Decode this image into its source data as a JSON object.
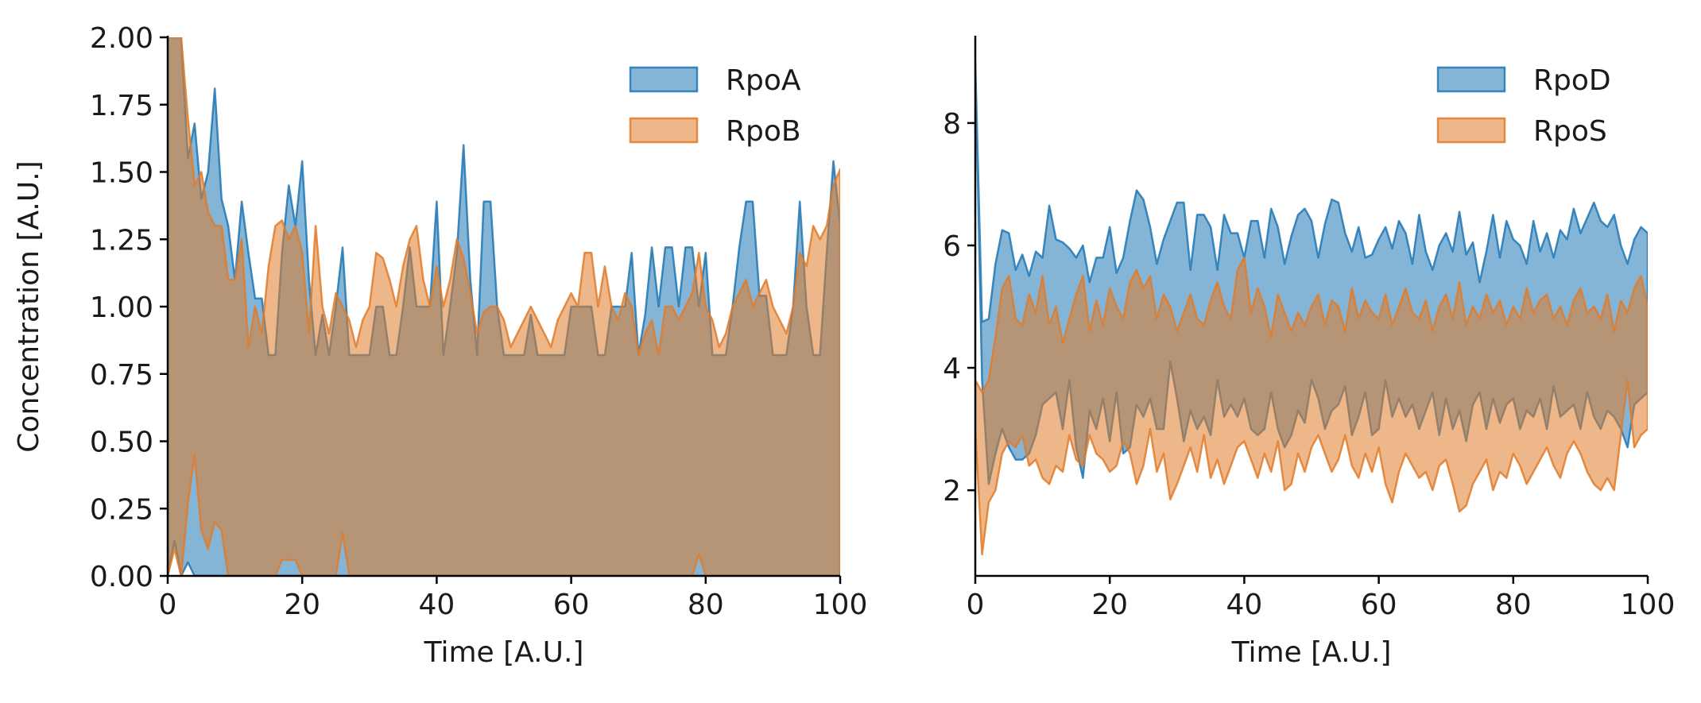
{
  "colors": {
    "series_a": "#1f77b4",
    "series_b": "#e07b29"
  },
  "chart_data": [
    {
      "type": "area",
      "title": "",
      "xlabel": "Time [A.U.]",
      "ylabel": "Concentration [A.U.]",
      "xlim": [
        0,
        100
      ],
      "ylim": [
        0,
        2.0
      ],
      "xticks": [
        "0",
        "20",
        "40",
        "60",
        "80",
        "100"
      ],
      "yticks": [
        "0.00",
        "0.25",
        "0.50",
        "0.75",
        "1.00",
        "1.25",
        "1.50",
        "1.75",
        "2.00"
      ],
      "grid": false,
      "legend_position": "top-right",
      "x": [
        0,
        1,
        2,
        3,
        4,
        5,
        6,
        7,
        8,
        9,
        10,
        11,
        12,
        13,
        14,
        15,
        16,
        17,
        18,
        19,
        20,
        21,
        22,
        23,
        24,
        25,
        26,
        27,
        28,
        29,
        30,
        31,
        32,
        33,
        34,
        35,
        36,
        37,
        38,
        39,
        40,
        41,
        42,
        43,
        44,
        45,
        46,
        47,
        48,
        49,
        50,
        51,
        52,
        53,
        54,
        55,
        56,
        57,
        58,
        59,
        60,
        61,
        62,
        63,
        64,
        65,
        66,
        67,
        68,
        69,
        70,
        71,
        72,
        73,
        74,
        75,
        76,
        77,
        78,
        79,
        80,
        81,
        82,
        83,
        84,
        85,
        86,
        87,
        88,
        89,
        90,
        91,
        92,
        93,
        94,
        95,
        96,
        97,
        98,
        99,
        100
      ],
      "series": [
        {
          "name": "RpoA",
          "upper": [
            2.0,
            2.0,
            2.0,
            1.55,
            1.68,
            1.4,
            1.5,
            1.81,
            1.4,
            1.3,
            1.1,
            1.39,
            1.2,
            1.03,
            1.03,
            0.82,
            0.82,
            1.2,
            1.45,
            1.3,
            1.54,
            1.1,
            0.82,
            0.97,
            0.82,
            1.0,
            1.22,
            0.82,
            0.82,
            0.82,
            0.82,
            1.0,
            1.0,
            0.82,
            0.82,
            1.0,
            1.22,
            1.0,
            1.0,
            1.0,
            1.39,
            0.82,
            1.0,
            1.2,
            1.6,
            1.1,
            0.82,
            1.39,
            1.39,
            1.0,
            0.82,
            0.82,
            0.82,
            0.82,
            0.97,
            0.82,
            0.82,
            0.82,
            0.82,
            0.82,
            1.0,
            1.0,
            1.0,
            1.0,
            0.82,
            0.82,
            1.0,
            1.0,
            1.0,
            1.2,
            0.82,
            0.97,
            1.22,
            1.0,
            1.22,
            1.22,
            1.0,
            1.22,
            1.22,
            1.0,
            1.2,
            0.82,
            0.82,
            0.82,
            1.0,
            1.22,
            1.39,
            1.39,
            1.04,
            1.04,
            0.82,
            0.82,
            0.82,
            1.0,
            1.39,
            1.0,
            0.82,
            0.82,
            1.2,
            1.54,
            1.3
          ],
          "lower": [
            0.0,
            0.13,
            0.0,
            0.05,
            0.0,
            0.0,
            0.0,
            0.0,
            0.0,
            0.0,
            0.0,
            0.0,
            0.0,
            0.0,
            0.0,
            0.0,
            0.0,
            0.0,
            0.0,
            0.0,
            0.0,
            0.0,
            0.0,
            0.0,
            0.0,
            0.0,
            0.0,
            0.0,
            0.0,
            0.0,
            0.0,
            0.0,
            0.0,
            0.0,
            0.0,
            0.0,
            0.0,
            0.0,
            0.0,
            0.0,
            0.0,
            0.0,
            0.0,
            0.0,
            0.0,
            0.0,
            0.0,
            0.0,
            0.0,
            0.0,
            0.0,
            0.0,
            0.0,
            0.0,
            0.0,
            0.0,
            0.0,
            0.0,
            0.0,
            0.0,
            0.0,
            0.0,
            0.0,
            0.0,
            0.0,
            0.0,
            0.0,
            0.0,
            0.0,
            0.0,
            0.0,
            0.0,
            0.0,
            0.0,
            0.0,
            0.0,
            0.0,
            0.0,
            0.0,
            0.0,
            0.0,
            0.0,
            0.0,
            0.0,
            0.0,
            0.0,
            0.0,
            0.0,
            0.0,
            0.0,
            0.0,
            0.0,
            0.0,
            0.0,
            0.0,
            0.0,
            0.0,
            0.0,
            0.0,
            0.0,
            0.0
          ]
        },
        {
          "name": "RpoB",
          "upper": [
            2.0,
            2.0,
            2.0,
            1.7,
            1.45,
            1.5,
            1.35,
            1.3,
            1.3,
            1.1,
            1.1,
            1.25,
            0.85,
            1.0,
            0.9,
            1.15,
            1.3,
            1.32,
            1.25,
            1.3,
            1.2,
            0.9,
            1.3,
            1.0,
            0.9,
            1.05,
            1.0,
            0.95,
            0.85,
            0.95,
            1.0,
            1.2,
            1.18,
            1.1,
            1.0,
            1.15,
            1.25,
            1.3,
            1.1,
            1.0,
            1.15,
            1.0,
            1.1,
            1.25,
            1.18,
            1.05,
            0.9,
            0.98,
            1.0,
            1.0,
            0.95,
            0.85,
            0.9,
            0.95,
            1.0,
            0.95,
            0.9,
            0.85,
            0.95,
            1.0,
            1.05,
            1.0,
            1.2,
            1.2,
            1.0,
            1.15,
            1.0,
            0.95,
            1.05,
            1.0,
            0.82,
            0.9,
            0.95,
            0.82,
            1.0,
            1.0,
            0.95,
            1.0,
            1.05,
            1.2,
            1.0,
            0.95,
            0.85,
            0.9,
            1.0,
            1.05,
            1.1,
            1.0,
            1.05,
            1.1,
            1.0,
            0.95,
            0.9,
            1.0,
            1.2,
            1.15,
            1.3,
            1.25,
            1.3,
            1.45,
            1.51
          ],
          "lower": [
            0.0,
            0.1,
            0.0,
            0.27,
            0.45,
            0.17,
            0.1,
            0.2,
            0.17,
            0.0,
            0.0,
            0.0,
            0.0,
            0.0,
            0.0,
            0.0,
            0.0,
            0.06,
            0.06,
            0.06,
            0.0,
            0.0,
            0.0,
            0.0,
            0.0,
            0.0,
            0.16,
            0.0,
            0.0,
            0.0,
            0.0,
            0.0,
            0.0,
            0.0,
            0.0,
            0.0,
            0.0,
            0.0,
            0.0,
            0.0,
            0.0,
            0.0,
            0.0,
            0.0,
            0.0,
            0.0,
            0.0,
            0.0,
            0.0,
            0.0,
            0.0,
            0.0,
            0.0,
            0.0,
            0.0,
            0.0,
            0.0,
            0.0,
            0.0,
            0.0,
            0.0,
            0.0,
            0.0,
            0.0,
            0.0,
            0.0,
            0.0,
            0.0,
            0.0,
            0.0,
            0.0,
            0.0,
            0.0,
            0.0,
            0.0,
            0.0,
            0.0,
            0.0,
            0.0,
            0.08,
            0.0,
            0.0,
            0.0,
            0.0,
            0.0,
            0.0,
            0.0,
            0.0,
            0.0,
            0.0,
            0.0,
            0.0,
            0.0,
            0.0,
            0.0,
            0.0,
            0.0,
            0.0,
            0.0,
            0.0,
            0.0
          ]
        }
      ]
    },
    {
      "type": "area",
      "title": "",
      "xlabel": "Time [A.U.]",
      "ylabel": "",
      "xlim": [
        0,
        100
      ],
      "ylim": [
        0.6,
        9.4
      ],
      "xticks": [
        "0",
        "20",
        "40",
        "60",
        "80",
        "100"
      ],
      "yticks": [
        "2",
        "4",
        "6",
        "8"
      ],
      "grid": false,
      "legend_position": "top-right",
      "x": [
        0,
        1,
        2,
        3,
        4,
        5,
        6,
        7,
        8,
        9,
        10,
        11,
        12,
        13,
        14,
        15,
        16,
        17,
        18,
        19,
        20,
        21,
        22,
        23,
        24,
        25,
        26,
        27,
        28,
        29,
        30,
        31,
        32,
        33,
        34,
        35,
        36,
        37,
        38,
        39,
        40,
        41,
        42,
        43,
        44,
        45,
        46,
        47,
        48,
        49,
        50,
        51,
        52,
        53,
        54,
        55,
        56,
        57,
        58,
        59,
        60,
        61,
        62,
        63,
        64,
        65,
        66,
        67,
        68,
        69,
        70,
        71,
        72,
        73,
        74,
        75,
        76,
        77,
        78,
        79,
        80,
        81,
        82,
        83,
        84,
        85,
        86,
        87,
        88,
        89,
        90,
        91,
        92,
        93,
        94,
        95,
        96,
        97,
        98,
        99,
        100
      ],
      "series": [
        {
          "name": "RpoD",
          "upper": [
            9.0,
            4.75,
            4.8,
            5.7,
            6.25,
            6.2,
            5.6,
            5.85,
            5.5,
            5.9,
            5.8,
            6.65,
            6.1,
            6.05,
            5.95,
            5.8,
            6.0,
            5.4,
            5.8,
            5.8,
            6.3,
            5.55,
            5.8,
            6.4,
            6.9,
            6.75,
            6.3,
            5.7,
            6.1,
            6.4,
            6.7,
            6.7,
            5.6,
            6.5,
            6.5,
            6.3,
            5.6,
            6.5,
            6.2,
            6.2,
            5.8,
            6.4,
            6.4,
            5.8,
            6.6,
            6.3,
            5.7,
            6.15,
            6.5,
            6.6,
            6.4,
            5.8,
            6.35,
            6.75,
            6.7,
            6.2,
            5.9,
            6.3,
            5.8,
            5.85,
            6.1,
            6.3,
            5.95,
            6.4,
            6.2,
            5.7,
            6.5,
            5.9,
            5.6,
            6.0,
            6.2,
            5.9,
            6.55,
            5.85,
            6.05,
            5.4,
            5.9,
            6.5,
            5.8,
            6.4,
            6.1,
            6.0,
            5.7,
            6.4,
            5.9,
            6.2,
            5.8,
            6.25,
            6.1,
            6.6,
            6.2,
            6.45,
            6.7,
            6.4,
            6.3,
            6.5,
            6.0,
            5.7,
            6.1,
            6.3,
            6.2
          ],
          "lower": [
            9.0,
            3.8,
            2.1,
            2.6,
            3.0,
            2.7,
            2.5,
            2.5,
            2.6,
            2.9,
            3.4,
            3.5,
            3.6,
            3.0,
            3.8,
            2.7,
            2.2,
            3.3,
            3.0,
            3.5,
            2.8,
            3.6,
            2.6,
            2.7,
            3.4,
            3.2,
            3.5,
            3.0,
            3.0,
            4.1,
            3.5,
            2.8,
            3.3,
            3.0,
            3.2,
            2.9,
            3.8,
            3.2,
            3.4,
            3.2,
            3.5,
            3.0,
            2.9,
            3.0,
            3.6,
            3.0,
            2.7,
            2.9,
            3.3,
            3.1,
            3.8,
            3.5,
            3.0,
            3.3,
            3.4,
            3.7,
            2.9,
            3.2,
            3.6,
            2.9,
            3.0,
            3.8,
            3.2,
            3.5,
            3.2,
            3.4,
            3.0,
            3.3,
            3.6,
            2.9,
            3.5,
            3.0,
            3.3,
            2.8,
            3.4,
            3.6,
            3.0,
            3.5,
            3.1,
            3.4,
            3.5,
            3.0,
            3.3,
            3.2,
            3.5,
            3.0,
            3.7,
            3.2,
            3.3,
            3.4,
            3.0,
            3.6,
            3.2,
            3.0,
            3.3,
            3.2,
            3.0,
            2.7,
            3.4,
            3.5,
            3.6
          ]
        },
        {
          "name": "RpoS",
          "upper": [
            3.8,
            3.6,
            3.8,
            4.5,
            5.3,
            5.5,
            4.8,
            4.7,
            5.2,
            4.9,
            5.5,
            4.7,
            5.0,
            4.4,
            4.8,
            5.2,
            5.5,
            4.6,
            5.1,
            4.7,
            5.3,
            5.0,
            4.8,
            5.4,
            5.6,
            5.3,
            5.5,
            4.8,
            5.2,
            5.0,
            4.6,
            4.9,
            5.2,
            4.8,
            4.7,
            5.1,
            5.4,
            5.0,
            4.8,
            5.6,
            5.8,
            4.9,
            5.3,
            5.0,
            4.5,
            5.2,
            4.9,
            4.6,
            4.9,
            4.7,
            5.0,
            5.2,
            4.7,
            5.1,
            5.0,
            4.6,
            5.3,
            4.8,
            5.1,
            4.9,
            4.8,
            5.2,
            4.7,
            5.0,
            5.3,
            4.9,
            4.8,
            5.1,
            4.6,
            5.0,
            5.2,
            4.8,
            5.4,
            4.7,
            5.0,
            4.8,
            5.2,
            4.9,
            5.1,
            4.7,
            5.0,
            4.8,
            5.3,
            4.9,
            5.1,
            5.2,
            4.8,
            5.0,
            4.7,
            5.1,
            5.3,
            4.9,
            5.0,
            4.8,
            5.2,
            4.6,
            5.1,
            4.9,
            5.3,
            5.5,
            5.0
          ],
          "lower": [
            3.0,
            0.95,
            1.8,
            2.0,
            2.6,
            2.8,
            2.7,
            2.9,
            2.4,
            2.5,
            2.2,
            2.1,
            2.4,
            2.3,
            2.9,
            2.5,
            2.4,
            2.9,
            2.6,
            2.5,
            2.3,
            2.4,
            2.8,
            2.6,
            2.1,
            2.4,
            3.0,
            2.3,
            2.6,
            1.85,
            2.1,
            2.4,
            2.7,
            2.3,
            2.9,
            2.2,
            2.5,
            2.1,
            2.4,
            2.7,
            2.8,
            2.5,
            2.2,
            2.6,
            2.3,
            2.8,
            2.0,
            2.1,
            2.6,
            2.3,
            2.7,
            2.9,
            2.6,
            2.3,
            2.5,
            2.9,
            2.4,
            2.2,
            2.6,
            2.3,
            2.7,
            2.1,
            1.8,
            2.3,
            2.6,
            2.4,
            2.2,
            2.3,
            2.0,
            2.4,
            2.5,
            2.1,
            1.65,
            1.75,
            2.1,
            2.3,
            2.5,
            2.0,
            2.3,
            2.2,
            2.6,
            2.4,
            2.1,
            2.3,
            2.5,
            2.7,
            2.4,
            2.2,
            2.6,
            2.8,
            2.6,
            2.3,
            2.1,
            2.0,
            2.2,
            2.0,
            2.9,
            3.8,
            2.7,
            2.9,
            3.0
          ]
        }
      ]
    }
  ]
}
